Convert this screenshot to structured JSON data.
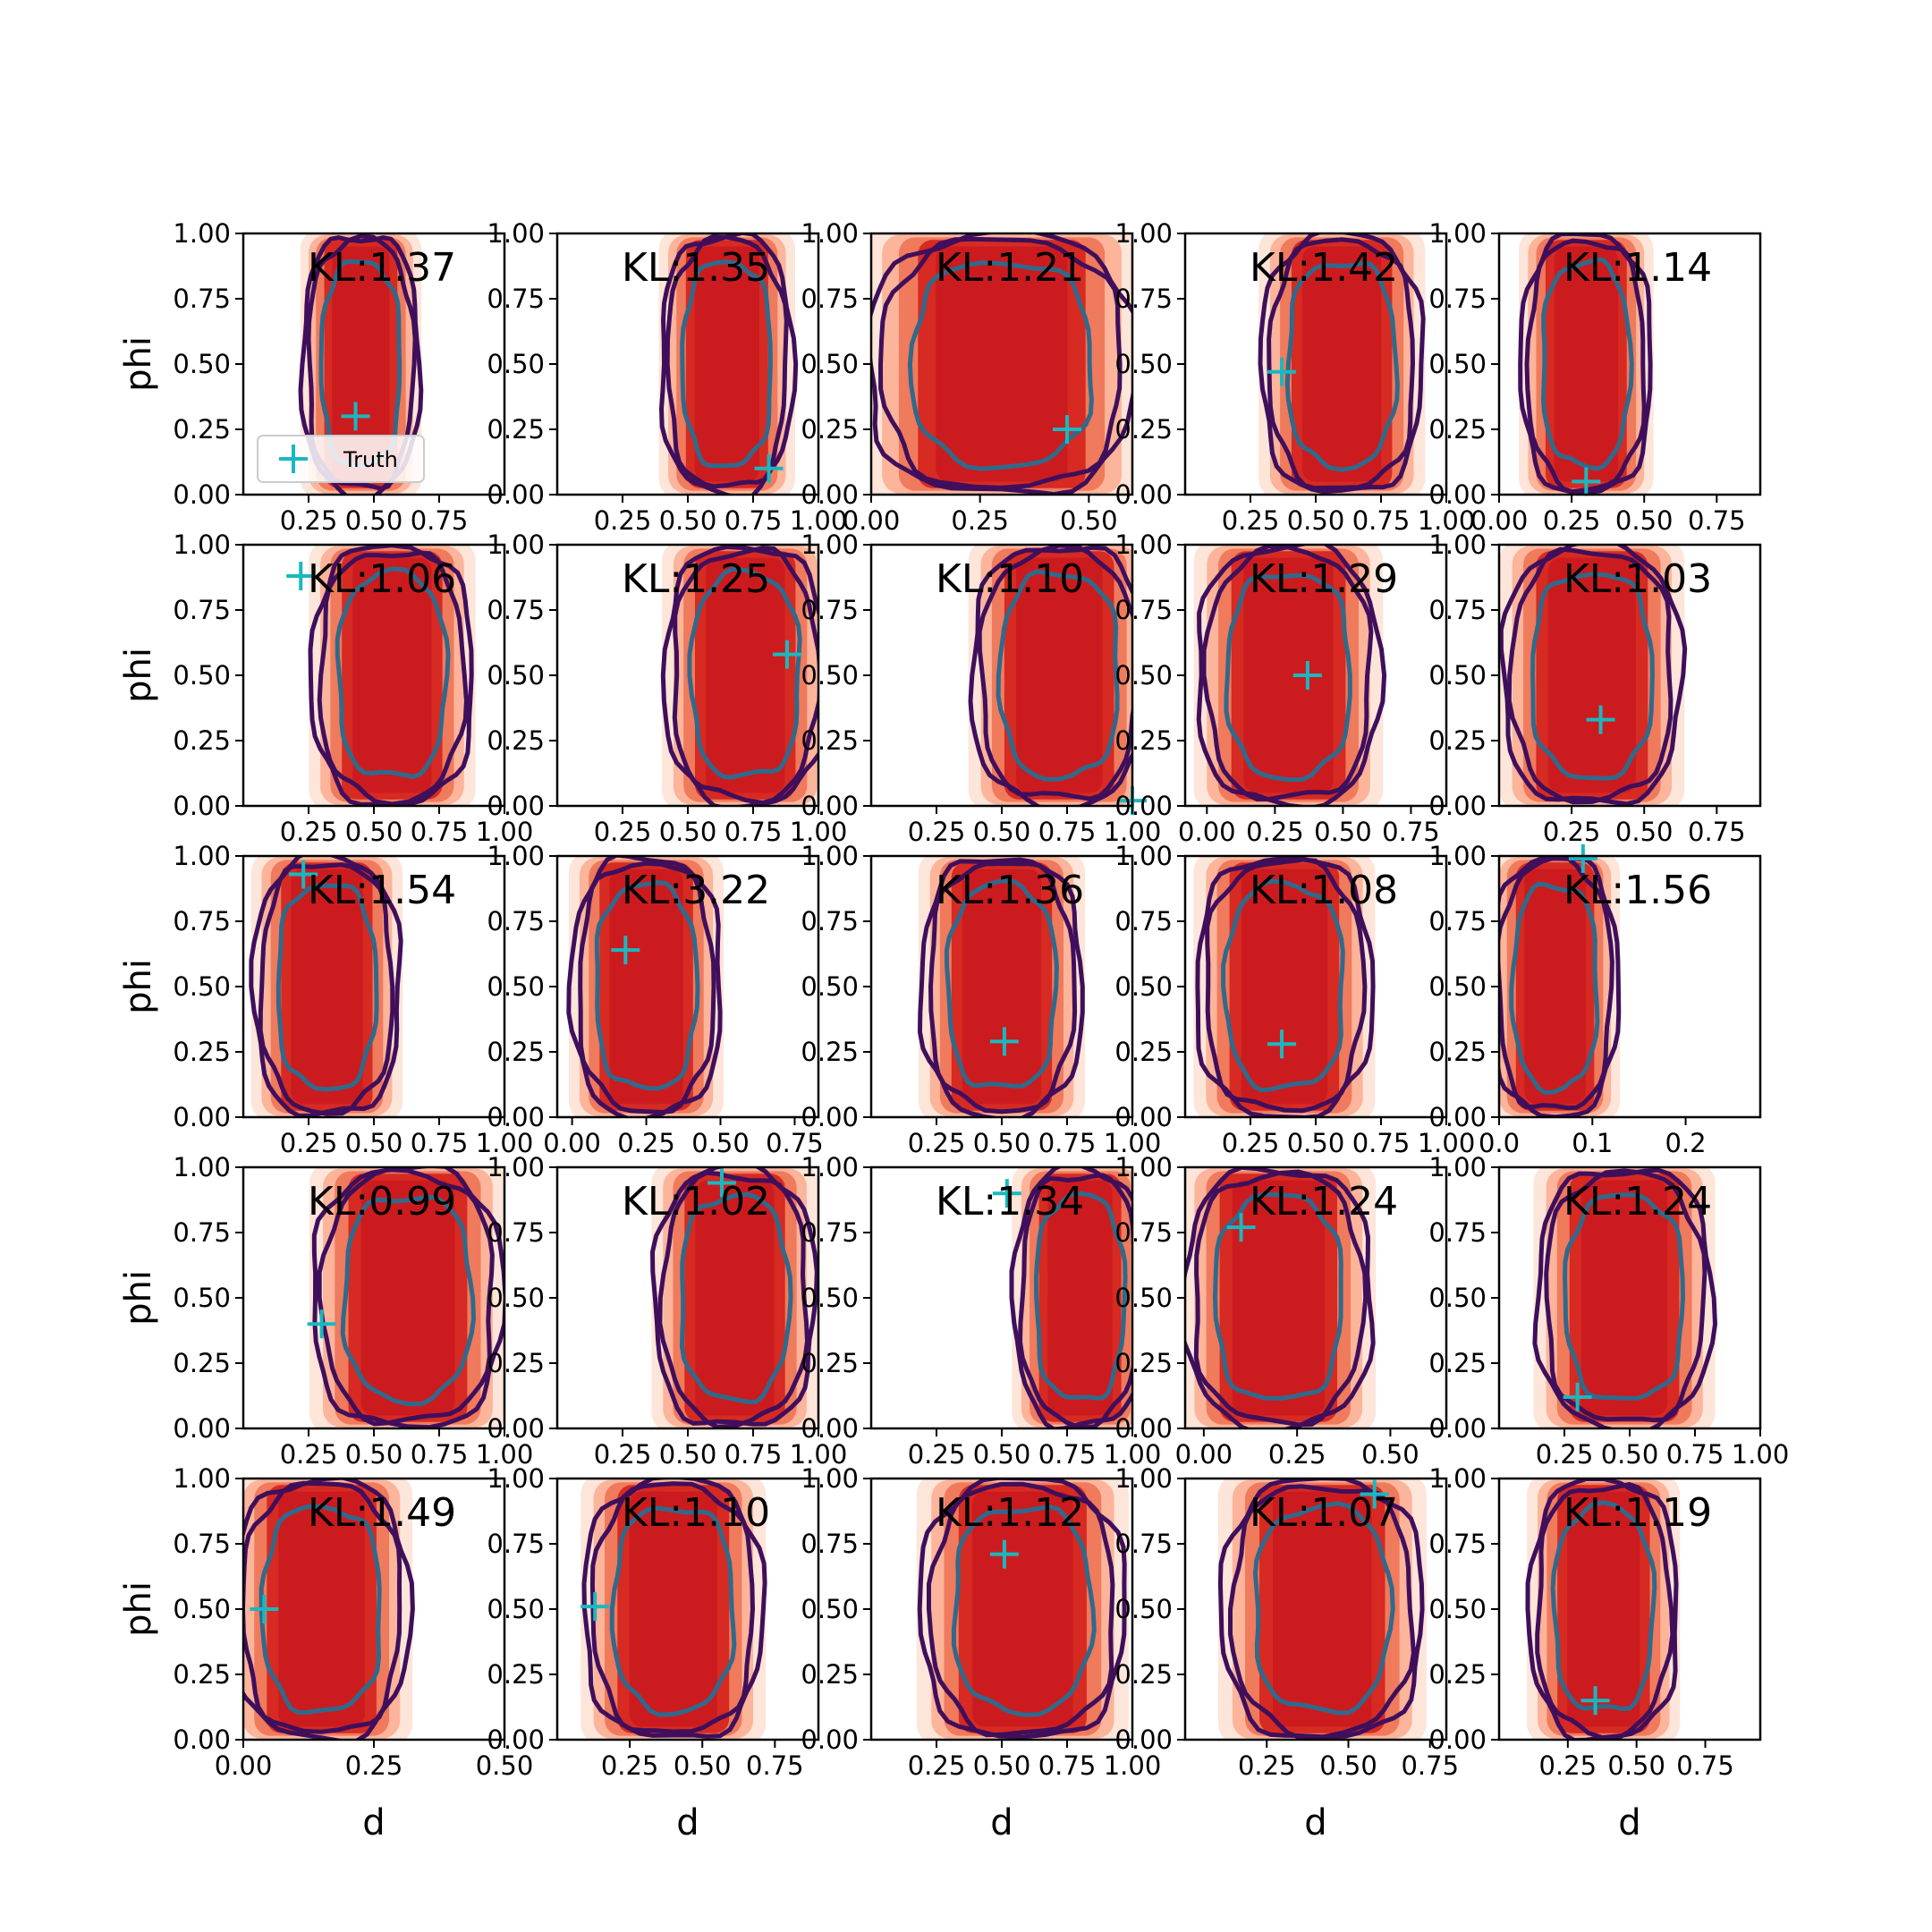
{
  "chart_data": {
    "type": "contour-grid",
    "rows": 5,
    "cols": 5,
    "xlabel": "d",
    "ylabel": "phi",
    "ylim": [
      0,
      1
    ],
    "yticks": [
      "0.00",
      "0.25",
      "0.50",
      "0.75",
      "1.00"
    ],
    "legend": {
      "label": "Truth",
      "location": "lower-left",
      "panel": 0
    },
    "colors": {
      "truth_marker": "#1ab8c0",
      "fill_levels": [
        "#fde5d9",
        "#fcb49a",
        "#f07a5c",
        "#d62a22",
        "#cc1b1e"
      ],
      "outer_contour": "#3f0f5c",
      "inner_contour": "#2f6a8c"
    },
    "panels": [
      {
        "kl": "KL:1.37",
        "xlim": [
          0.0,
          1.0
        ],
        "xticks": [
          "0.25",
          "0.50",
          "0.75"
        ],
        "cx": 0.45,
        "w": 0.4,
        "truth": [
          0.43,
          0.3
        ]
      },
      {
        "kl": "KL:1.35",
        "xlim": [
          0.0,
          1.0
        ],
        "xticks": [
          "0.25",
          "0.50",
          "0.75",
          "1.00"
        ],
        "cx": 0.65,
        "w": 0.45,
        "truth": [
          0.81,
          0.1
        ]
      },
      {
        "kl": "KL:1.21",
        "xlim": [
          0.0,
          0.6
        ],
        "xticks": [
          "0.00",
          "0.25",
          "0.50"
        ],
        "cx": 0.3,
        "w": 0.55,
        "truth": [
          0.45,
          0.25
        ]
      },
      {
        "kl": "KL:1.42",
        "xlim": [
          0.0,
          1.0
        ],
        "xticks": [
          "0.25",
          "0.50",
          "0.75",
          "1.00"
        ],
        "cx": 0.6,
        "w": 0.55,
        "truth": [
          0.37,
          0.47
        ]
      },
      {
        "kl": "KL:1.14",
        "xlim": [
          0.0,
          0.9
        ],
        "xticks": [
          "0.00",
          "0.25",
          "0.50",
          "0.75"
        ],
        "cx": 0.3,
        "w": 0.4,
        "truth": [
          0.3,
          0.05
        ]
      },
      {
        "kl": "KL:1.06",
        "xlim": [
          0.0,
          1.0
        ],
        "xticks": [
          "0.25",
          "0.50",
          "0.75",
          "1.00"
        ],
        "cx": 0.57,
        "w": 0.55,
        "truth": [
          0.22,
          0.88
        ]
      },
      {
        "kl": "KL:1.25",
        "xlim": [
          0.0,
          1.0
        ],
        "xticks": [
          "0.25",
          "0.50",
          "0.75",
          "1.00"
        ],
        "cx": 0.72,
        "w": 0.55,
        "truth": [
          0.88,
          0.58
        ]
      },
      {
        "kl": "KL:1.10",
        "xlim": [
          0.0,
          1.0
        ],
        "xticks": [
          "0.25",
          "0.50",
          "0.75",
          "1.00"
        ],
        "cx": 0.72,
        "w": 0.6,
        "truth": [
          1.0,
          0.02
        ]
      },
      {
        "kl": "KL:1.29",
        "xlim": [
          -0.08,
          0.88
        ],
        "xticks": [
          "0.00",
          "0.25",
          "0.50",
          "0.75"
        ],
        "cx": 0.3,
        "w": 0.6,
        "truth": [
          0.37,
          0.5
        ]
      },
      {
        "kl": "KL:1.03",
        "xlim": [
          0.0,
          0.9
        ],
        "xticks": [
          "0.25",
          "0.50",
          "0.75"
        ],
        "cx": 0.32,
        "w": 0.55,
        "truth": [
          0.35,
          0.33
        ]
      },
      {
        "kl": "KL:1.54",
        "xlim": [
          0.0,
          1.0
        ],
        "xticks": [
          "0.25",
          "0.50",
          "0.75",
          "1.00"
        ],
        "cx": 0.32,
        "w": 0.5,
        "truth": [
          0.23,
          0.93
        ]
      },
      {
        "kl": "KL:3.22",
        "xlim": [
          -0.05,
          0.83
        ],
        "xticks": [
          "0.00",
          "0.25",
          "0.50",
          "0.75"
        ],
        "cx": 0.25,
        "w": 0.45,
        "truth": [
          0.18,
          0.64
        ]
      },
      {
        "kl": "KL:1.36",
        "xlim": [
          0.0,
          1.0
        ],
        "xticks": [
          "0.25",
          "0.50",
          "0.75",
          "1.00"
        ],
        "cx": 0.5,
        "w": 0.55,
        "truth": [
          0.51,
          0.29
        ]
      },
      {
        "kl": "KL:1.08",
        "xlim": [
          0.0,
          1.0
        ],
        "xticks": [
          "0.25",
          "0.50",
          "0.75",
          "1.00"
        ],
        "cx": 0.38,
        "w": 0.6,
        "truth": [
          0.37,
          0.28
        ]
      },
      {
        "kl": "KL:1.56",
        "xlim": [
          0.0,
          0.28
        ],
        "xticks": [
          "0.0",
          "0.1",
          "0.2"
        ],
        "cx": 0.06,
        "w": 0.12,
        "truth": [
          0.09,
          0.99
        ]
      },
      {
        "kl": "KL:0.99",
        "xlim": [
          0.0,
          1.0
        ],
        "xticks": [
          "0.25",
          "0.50",
          "0.75",
          "1.00"
        ],
        "cx": 0.63,
        "w": 0.65,
        "truth": [
          0.3,
          0.4
        ]
      },
      {
        "kl": "KL:1.02",
        "xlim": [
          0.0,
          1.0
        ],
        "xticks": [
          "0.25",
          "0.50",
          "0.75",
          "1.00"
        ],
        "cx": 0.68,
        "w": 0.55,
        "truth": [
          0.63,
          0.94
        ]
      },
      {
        "kl": "KL:1.34",
        "xlim": [
          0.0,
          1.0
        ],
        "xticks": [
          "0.25",
          "0.50",
          "0.75",
          "1.00"
        ],
        "cx": 0.8,
        "w": 0.45,
        "truth": [
          0.52,
          0.9
        ]
      },
      {
        "kl": "KL:1.24",
        "xlim": [
          -0.05,
          0.65
        ],
        "xticks": [
          "0.00",
          "0.25",
          "0.50"
        ],
        "cx": 0.2,
        "w": 0.45,
        "truth": [
          0.1,
          0.77
        ]
      },
      {
        "kl": "KL:1.24",
        "xlim": [
          0.0,
          1.0
        ],
        "xticks": [
          "0.25",
          "0.50",
          "0.75",
          "1.00"
        ],
        "cx": 0.48,
        "w": 0.6,
        "truth": [
          0.3,
          0.12
        ]
      },
      {
        "kl": "KL:1.49",
        "xlim": [
          0.0,
          0.5
        ],
        "xticks": [
          "0.00",
          "0.25",
          "0.50"
        ],
        "cx": 0.15,
        "w": 0.3,
        "truth": [
          0.04,
          0.5
        ]
      },
      {
        "kl": "KL:1.10",
        "xlim": [
          0.0,
          0.9
        ],
        "xticks": [
          "0.25",
          "0.50",
          "0.75"
        ],
        "cx": 0.4,
        "w": 0.55,
        "truth": [
          0.13,
          0.51
        ]
      },
      {
        "kl": "KL:1.12",
        "xlim": [
          0.0,
          1.0
        ],
        "xticks": [
          "0.25",
          "0.50",
          "0.75",
          "1.00"
        ],
        "cx": 0.58,
        "w": 0.7,
        "truth": [
          0.51,
          0.71
        ]
      },
      {
        "kl": "KL:1.07",
        "xlim": [
          0.0,
          0.8
        ],
        "xticks": [
          "0.25",
          "0.50",
          "0.75"
        ],
        "cx": 0.42,
        "w": 0.55,
        "truth": [
          0.58,
          0.94
        ]
      },
      {
        "kl": "KL:1.19",
        "xlim": [
          0.0,
          0.95
        ],
        "xticks": [
          "0.25",
          "0.50",
          "0.75"
        ],
        "cx": 0.38,
        "w": 0.48,
        "truth": [
          0.35,
          0.15
        ]
      }
    ]
  }
}
